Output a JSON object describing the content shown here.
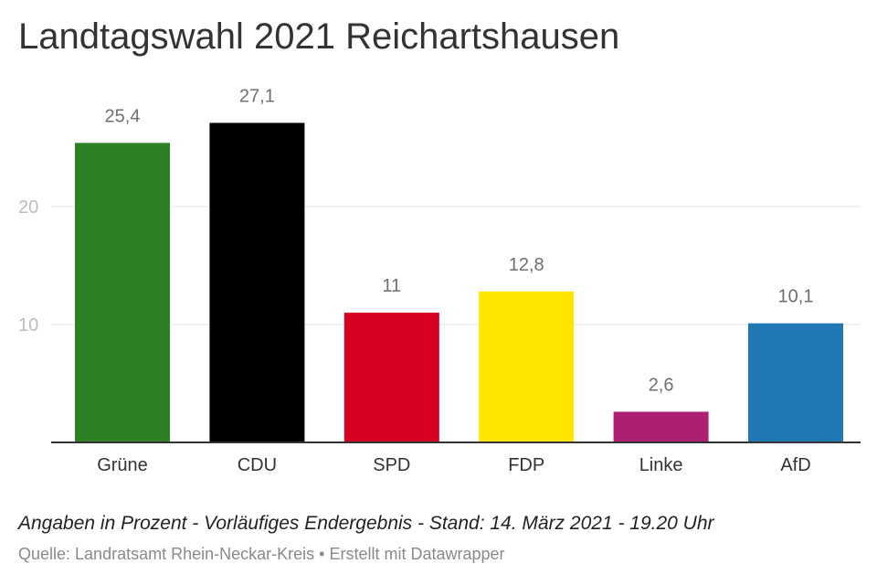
{
  "chart_data": {
    "type": "bar",
    "title": "Landtagswahl 2021 Reichartshausen",
    "categories": [
      "Grüne",
      "CDU",
      "SPD",
      "FDP",
      "Linke",
      "AfD"
    ],
    "values": [
      25.4,
      27.1,
      11,
      12.8,
      2.6,
      10.1
    ],
    "value_labels": [
      "25,4",
      "27,1",
      "11",
      "12,8",
      "2,6",
      "10,1"
    ],
    "colors": [
      "#2e8027",
      "#000000",
      "#d60021",
      "#ffe500",
      "#ad1f70",
      "#1f77b4"
    ],
    "yticks": [
      10,
      20
    ],
    "ytick_labels": [
      "10",
      "20"
    ],
    "ylim": [
      0,
      30
    ],
    "grid": true,
    "xlabel": "",
    "ylabel": ""
  },
  "footer": {
    "note": "Angaben in Prozent - Vorläufiges Endergebnis - Stand: 14. März 2021 - 19.20 Uhr",
    "source": "Quelle: Landratsamt Rhein-Neckar-Kreis",
    "separator": "•",
    "credit": "Erstellt mit Datawrapper"
  }
}
